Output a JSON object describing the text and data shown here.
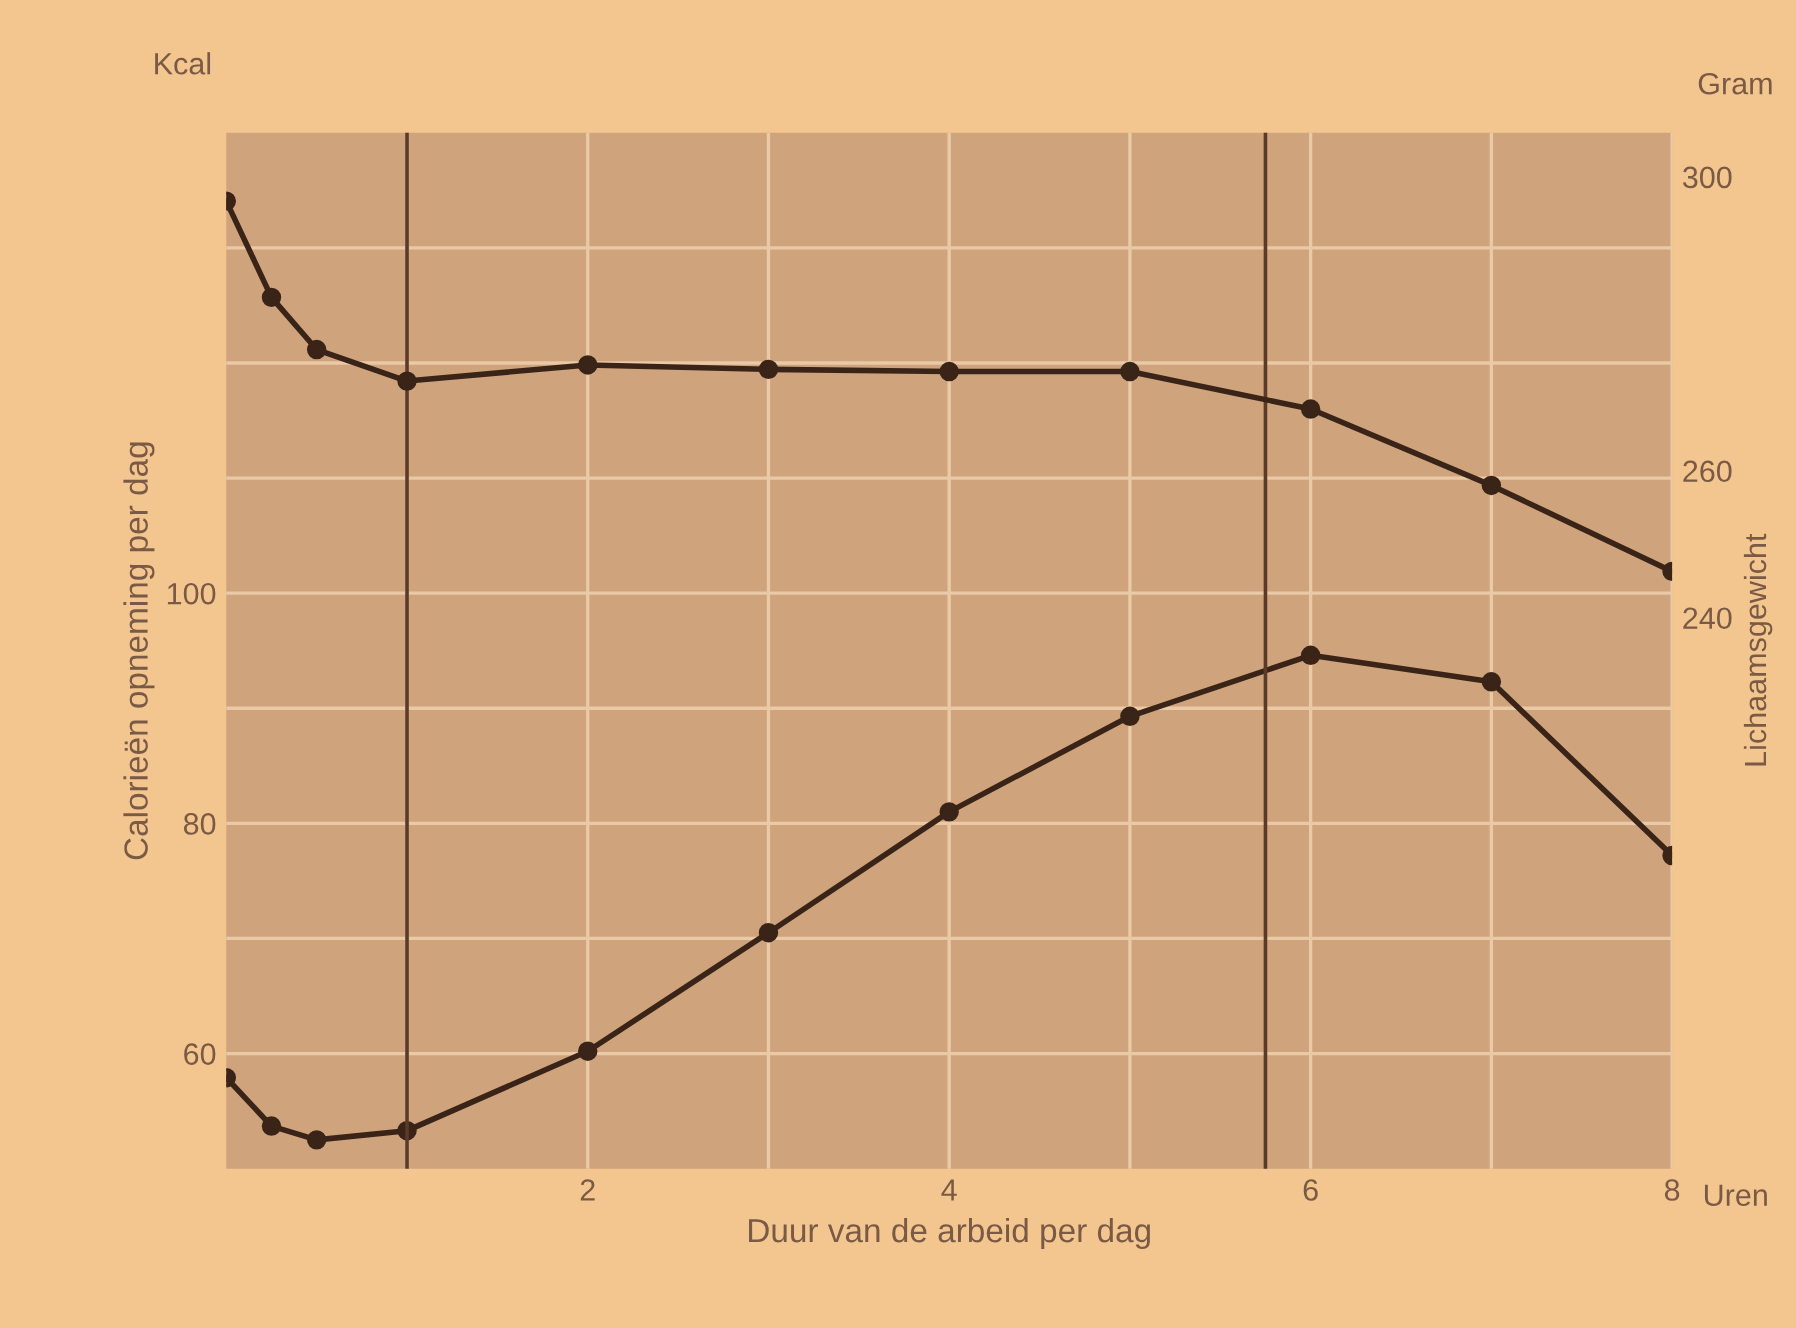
{
  "chart_data": {
    "type": "line",
    "xlabel": "Duur van de arbeid per dag",
    "ylabel": "Calorieën opneming per dag",
    "y2label": "Lichaamsgewicht",
    "annotations": [
      "Kcal",
      "Gram",
      "Uren"
    ],
    "x": [
      0,
      0.25,
      0.5,
      1,
      2,
      3,
      4,
      5,
      6,
      7,
      8
    ],
    "series": [
      {
        "color": "#3a2418",
        "axis": "y2",
        "values": [
          296.7,
          283.6,
          276.5,
          272.2,
          274.4,
          273.8,
          273.5,
          273.5,
          268.4,
          258,
          246.3
        ]
      },
      {
        "color": "#3a2418",
        "values": [
          57.9,
          53.7,
          52.5,
          53.3,
          60.2,
          70.5,
          81,
          89.3,
          94.6,
          92.3,
          77.2
        ]
      }
    ],
    "xlim": [
      0,
      8
    ],
    "xticks": [
      {
        "value": 1,
        "label": null
      },
      2,
      {
        "value": 3,
        "label": null
      },
      4,
      {
        "value": 5,
        "label": null
      },
      6,
      {
        "value": 7,
        "label": null
      },
      8
    ],
    "ylim": [
      50,
      140
    ],
    "yticks": [
      60,
      {
        "value": 70,
        "label": null
      },
      80,
      {
        "value": 90,
        "label": null
      },
      100,
      {
        "value": 110,
        "label": null
      },
      {
        "value": 120,
        "label": null
      },
      {
        "value": 130,
        "label": null
      }
    ],
    "y2lim": [
      165,
      306
    ],
    "y2ticks": [
      240,
      260,
      300
    ],
    "ref_lines": [
      {
        "axis": "x",
        "value": 1,
        "color": "#5a3a28"
      },
      {
        "axis": "x",
        "value": 5.75,
        "color": "#5a3a28"
      }
    ],
    "grid": true,
    "marker": "circle",
    "line_style": "solid",
    "legend": false
  }
}
